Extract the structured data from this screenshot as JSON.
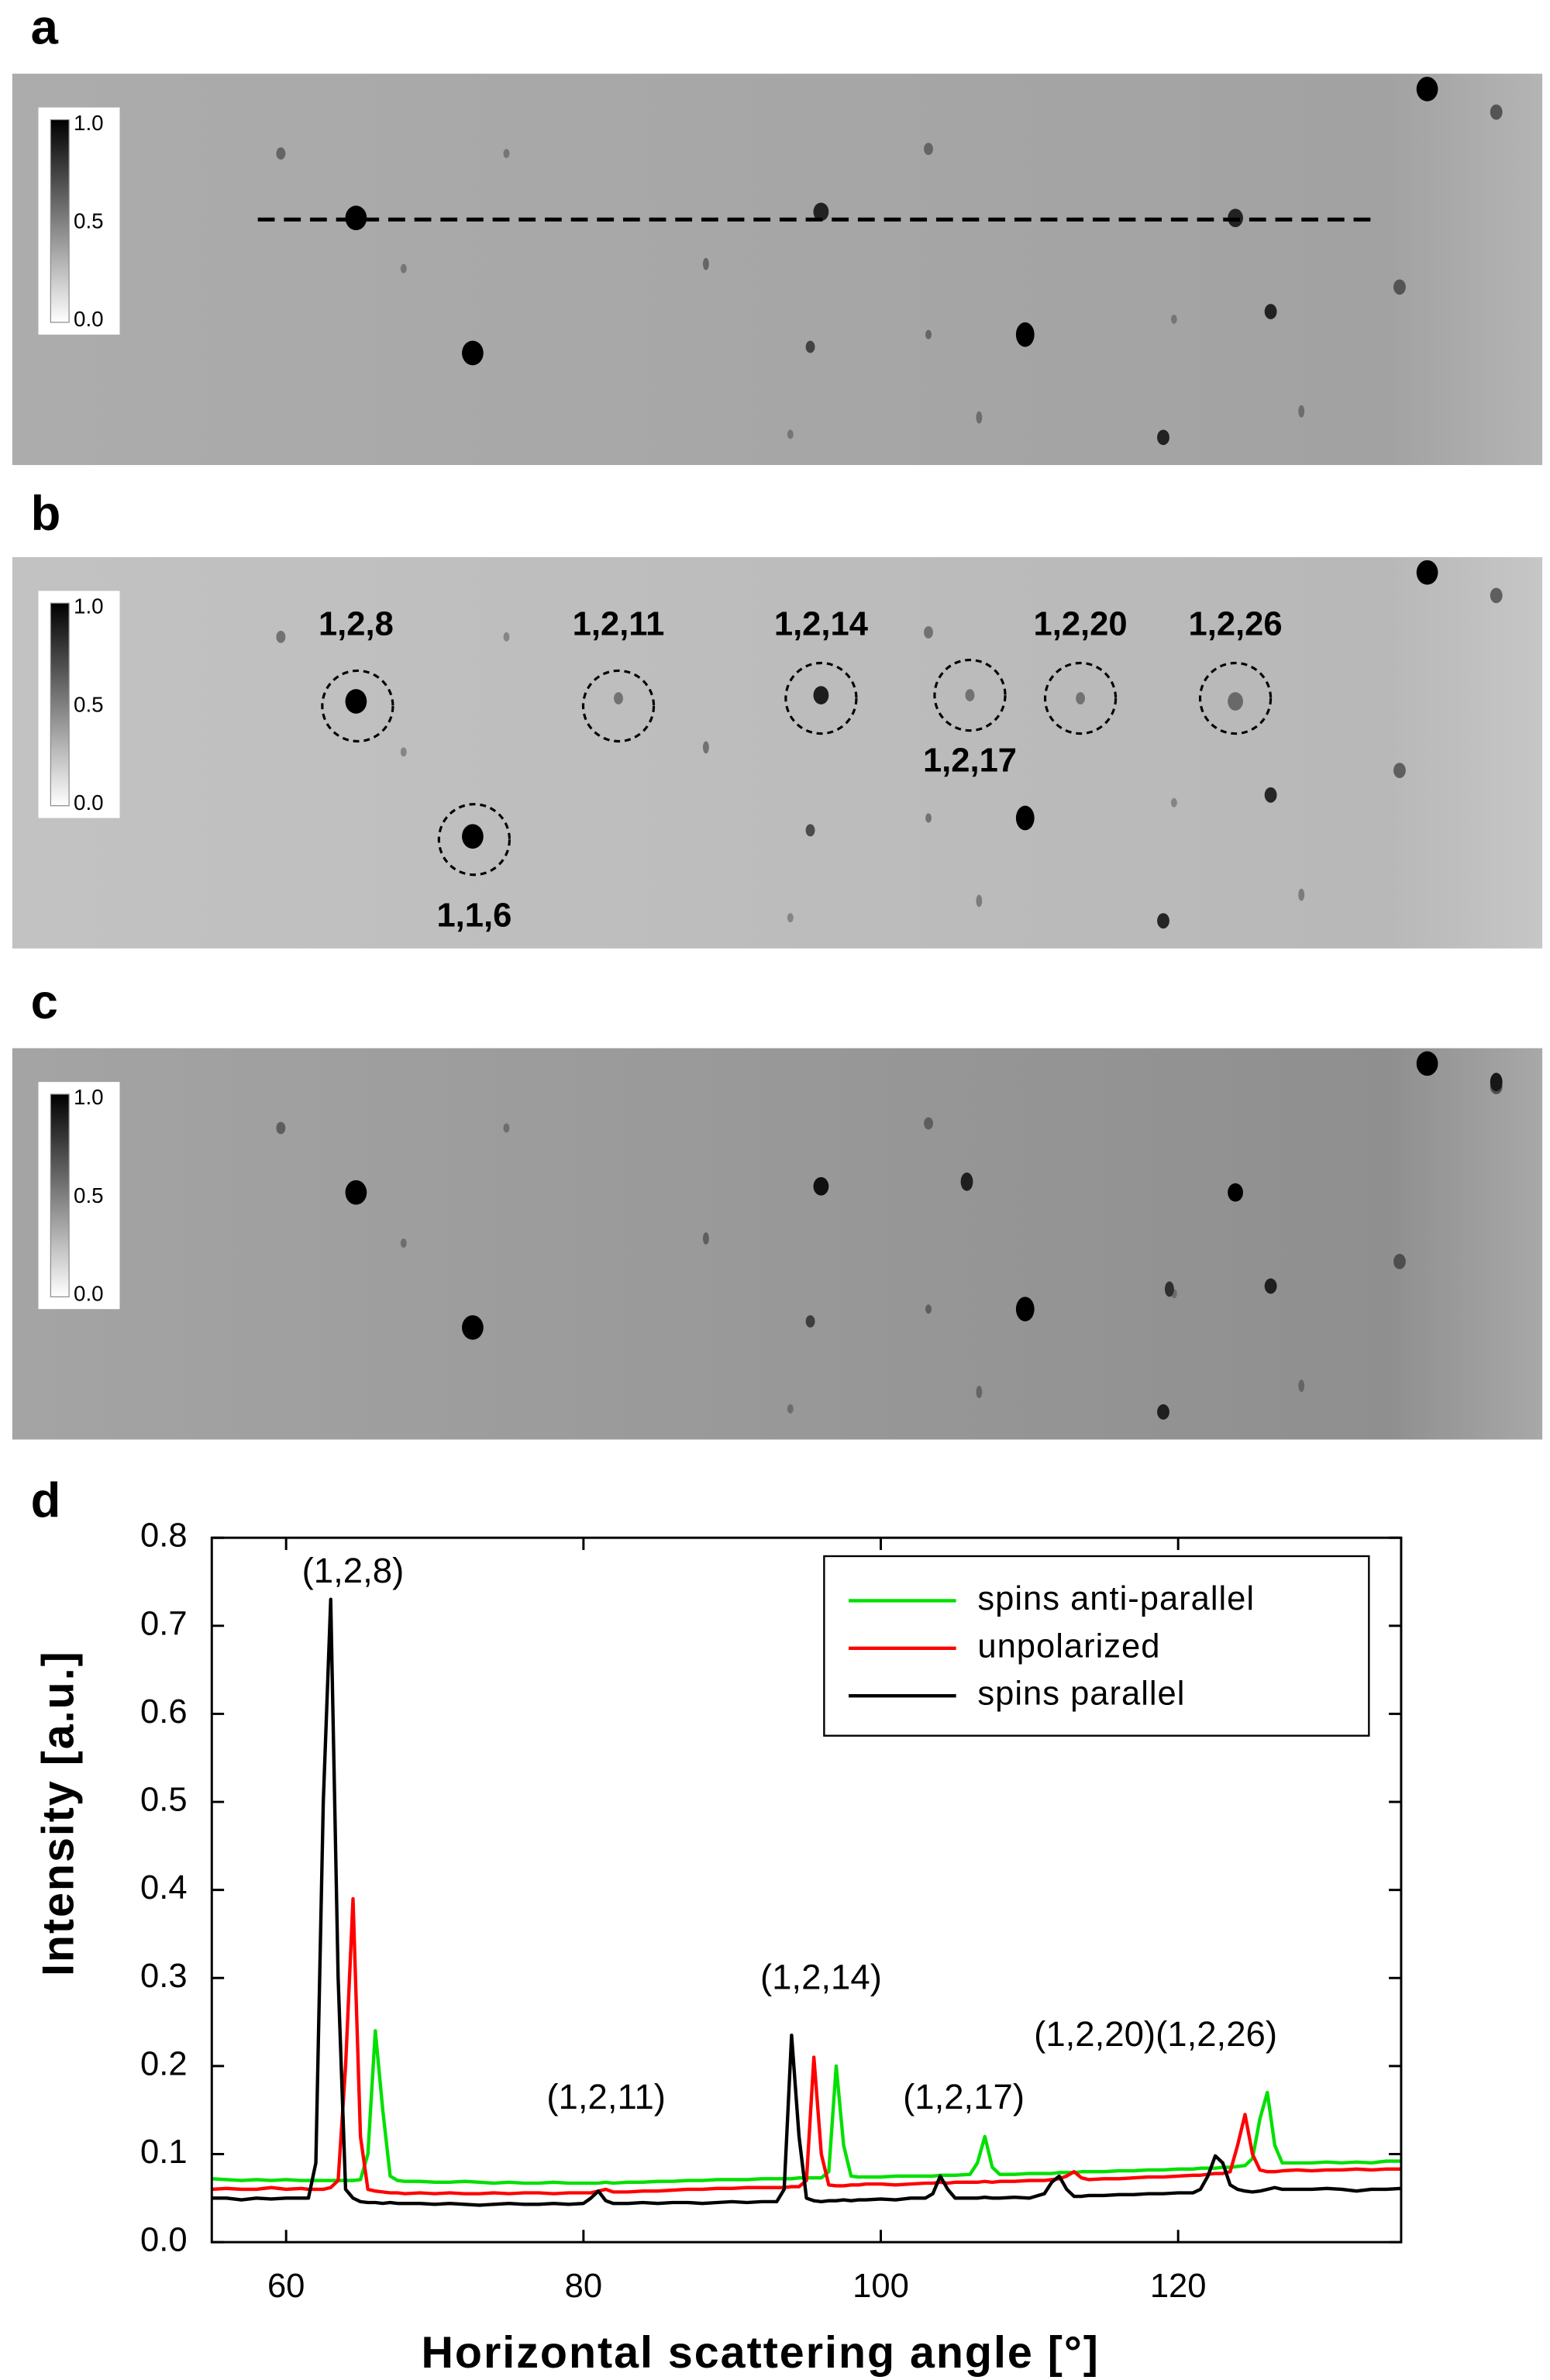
{
  "panels": [
    {
      "label": "a",
      "colorbar_ticks": [
        "1.0",
        "0.5",
        "0.0"
      ]
    },
    {
      "label": "b",
      "colorbar_ticks": [
        "1.0",
        "0.5",
        "0.0"
      ],
      "annotations": [
        "1,2,8",
        "1,2,11",
        "1,2,14",
        "1,2,17",
        "1,2,20",
        "1,2,26",
        "1,1,6"
      ]
    },
    {
      "label": "c",
      "colorbar_ticks": [
        "1.0",
        "0.5",
        "0.0"
      ]
    }
  ],
  "chart_data": {
    "type": "line",
    "panel_label": "d",
    "xlabel": "Horizontal scattering angle [°]",
    "ylabel": "Intensity [a.u.]",
    "xlim": [
      55,
      135
    ],
    "xticks": [
      60,
      80,
      100,
      120
    ],
    "ylim": [
      0,
      0.8
    ],
    "yticks": [
      {
        "value": 0,
        "label": "0.0"
      },
      0.1,
      0.2,
      0.3,
      0.4,
      0.5,
      0.6,
      0.7,
      0.8
    ],
    "legend": "upper right",
    "annotations": [
      "(1,2,8)",
      "(1,2,11)",
      "(1,2,14)",
      "(1,2,17)",
      "(1,2,20)(1,2,26)"
    ],
    "x": [
      55,
      56,
      57,
      58,
      59,
      60,
      61,
      61.5,
      62,
      62.5,
      63,
      63.5,
      64,
      64.5,
      65,
      65.5,
      66,
      66.5,
      67,
      67.5,
      68,
      69,
      70,
      71,
      72,
      73,
      74,
      75,
      76,
      77,
      78,
      79,
      80,
      80.5,
      81,
      81.5,
      82,
      83,
      84,
      85,
      86,
      87,
      88,
      89,
      90,
      91,
      92,
      93,
      93.5,
      94,
      94.5,
      95,
      95.5,
      96,
      96.5,
      97,
      97.5,
      98,
      98.5,
      99,
      100,
      101,
      102,
      103,
      103.5,
      104,
      104.5,
      105,
      106,
      106.5,
      107,
      107.5,
      108,
      109,
      110,
      111,
      111.5,
      112,
      112.5,
      113,
      113.5,
      114,
      115,
      116,
      117,
      118,
      119,
      120,
      121,
      121.5,
      122,
      122.5,
      123,
      123.5,
      124,
      124.5,
      125,
      125.5,
      126,
      126.5,
      127,
      128,
      129,
      130,
      131,
      132,
      133,
      134,
      135
    ],
    "series": [
      {
        "name": "spins anti-parallel",
        "color": "#00e000",
        "values": [
          0.072,
          0.071,
          0.07,
          0.071,
          0.07,
          0.071,
          0.07,
          0.07,
          0.07,
          0.07,
          0.07,
          0.07,
          0.07,
          0.07,
          0.071,
          0.1,
          0.24,
          0.15,
          0.075,
          0.07,
          0.069,
          0.069,
          0.068,
          0.068,
          0.069,
          0.068,
          0.067,
          0.068,
          0.067,
          0.067,
          0.068,
          0.067,
          0.067,
          0.067,
          0.067,
          0.068,
          0.067,
          0.068,
          0.068,
          0.069,
          0.069,
          0.07,
          0.07,
          0.071,
          0.071,
          0.071,
          0.072,
          0.072,
          0.072,
          0.072,
          0.073,
          0.073,
          0.073,
          0.073,
          0.08,
          0.2,
          0.11,
          0.075,
          0.074,
          0.074,
          0.074,
          0.075,
          0.075,
          0.075,
          0.075,
          0.076,
          0.076,
          0.076,
          0.077,
          0.09,
          0.12,
          0.085,
          0.077,
          0.077,
          0.078,
          0.078,
          0.078,
          0.079,
          0.079,
          0.079,
          0.08,
          0.08,
          0.08,
          0.081,
          0.081,
          0.082,
          0.082,
          0.083,
          0.083,
          0.084,
          0.084,
          0.084,
          0.085,
          0.085,
          0.086,
          0.087,
          0.095,
          0.14,
          0.17,
          0.11,
          0.09,
          0.09,
          0.09,
          0.091,
          0.09,
          0.091,
          0.09,
          0.092,
          0.092
        ]
      },
      {
        "name": "unpolarized",
        "color": "#ff0000",
        "values": [
          0.06,
          0.061,
          0.06,
          0.06,
          0.062,
          0.06,
          0.061,
          0.06,
          0.06,
          0.06,
          0.062,
          0.07,
          0.2,
          0.39,
          0.12,
          0.06,
          0.058,
          0.057,
          0.056,
          0.056,
          0.055,
          0.056,
          0.055,
          0.056,
          0.055,
          0.055,
          0.056,
          0.055,
          0.056,
          0.056,
          0.055,
          0.056,
          0.056,
          0.056,
          0.058,
          0.06,
          0.057,
          0.057,
          0.058,
          0.058,
          0.059,
          0.06,
          0.06,
          0.061,
          0.061,
          0.062,
          0.062,
          0.062,
          0.062,
          0.063,
          0.063,
          0.07,
          0.21,
          0.1,
          0.065,
          0.064,
          0.064,
          0.065,
          0.065,
          0.066,
          0.066,
          0.065,
          0.066,
          0.067,
          0.067,
          0.068,
          0.067,
          0.068,
          0.068,
          0.068,
          0.069,
          0.068,
          0.069,
          0.069,
          0.07,
          0.07,
          0.071,
          0.072,
          0.075,
          0.08,
          0.073,
          0.071,
          0.072,
          0.072,
          0.073,
          0.074,
          0.074,
          0.075,
          0.076,
          0.076,
          0.077,
          0.078,
          0.078,
          0.08,
          0.11,
          0.145,
          0.1,
          0.082,
          0.08,
          0.08,
          0.081,
          0.082,
          0.081,
          0.082,
          0.082,
          0.083,
          0.082,
          0.083,
          0.083
        ]
      },
      {
        "name": "spins parallel",
        "color": "#000000",
        "values": [
          0.05,
          0.05,
          0.048,
          0.05,
          0.049,
          0.05,
          0.05,
          0.05,
          0.09,
          0.5,
          0.73,
          0.3,
          0.06,
          0.05,
          0.046,
          0.045,
          0.045,
          0.044,
          0.045,
          0.044,
          0.044,
          0.044,
          0.043,
          0.044,
          0.043,
          0.042,
          0.043,
          0.044,
          0.043,
          0.043,
          0.044,
          0.043,
          0.044,
          0.05,
          0.058,
          0.047,
          0.044,
          0.044,
          0.045,
          0.044,
          0.045,
          0.045,
          0.044,
          0.045,
          0.046,
          0.045,
          0.046,
          0.046,
          0.06,
          0.235,
          0.12,
          0.05,
          0.047,
          0.046,
          0.047,
          0.047,
          0.048,
          0.047,
          0.048,
          0.048,
          0.049,
          0.048,
          0.05,
          0.05,
          0.055,
          0.075,
          0.06,
          0.05,
          0.05,
          0.05,
          0.051,
          0.05,
          0.05,
          0.051,
          0.05,
          0.055,
          0.068,
          0.075,
          0.06,
          0.052,
          0.052,
          0.053,
          0.053,
          0.054,
          0.054,
          0.055,
          0.055,
          0.056,
          0.056,
          0.06,
          0.075,
          0.098,
          0.09,
          0.065,
          0.06,
          0.058,
          0.057,
          0.058,
          0.06,
          0.062,
          0.06,
          0.06,
          0.06,
          0.061,
          0.06,
          0.058,
          0.06,
          0.06,
          0.061
        ]
      }
    ]
  }
}
